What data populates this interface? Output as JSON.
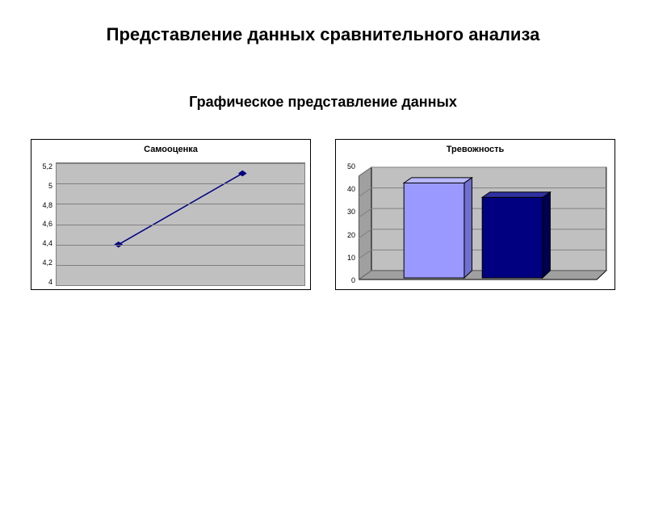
{
  "main_title": "Представление данных сравнительного анализа",
  "sub_title": "Графическое представление данных",
  "line_chart": {
    "type": "line",
    "title": "Самооценка",
    "title_fontsize": 11,
    "ylim": [
      4,
      5.2
    ],
    "ytick_labels": [
      "5,2",
      "5",
      "4,8",
      "4,6",
      "4,4",
      "4,2",
      "4"
    ],
    "ytick_values": [
      5.2,
      5.0,
      4.8,
      4.6,
      4.4,
      4.2,
      4.0
    ],
    "points": [
      {
        "x": 0.25,
        "y": 4.4
      },
      {
        "x": 0.75,
        "y": 5.1
      }
    ],
    "line_color": "#000080",
    "line_width": 1.5,
    "marker_style": "diamond",
    "marker_size": 6,
    "marker_color": "#000080",
    "plot_bg": "#c0c0c0",
    "grid_color": "#808080",
    "label_fontsize": 9
  },
  "bar_chart": {
    "type": "bar3d",
    "title": "Тревожность",
    "title_fontsize": 11,
    "ylim": [
      0,
      50
    ],
    "ytick_labels": [
      "50",
      "40",
      "30",
      "20",
      "10",
      "0"
    ],
    "ytick_values": [
      50,
      40,
      30,
      20,
      10,
      0
    ],
    "bars": [
      {
        "value": 45,
        "color": "#9999ff",
        "side_color": "#7070d0",
        "top_color": "#b8b8ff"
      },
      {
        "value": 38,
        "color": "#000080",
        "side_color": "#000050",
        "top_color": "#3030a0"
      }
    ],
    "wall_color": "#c0c0c0",
    "floor_color": "#a0a0a0",
    "grid_color": "#808080",
    "bar_width": 0.35,
    "label_fontsize": 9
  }
}
